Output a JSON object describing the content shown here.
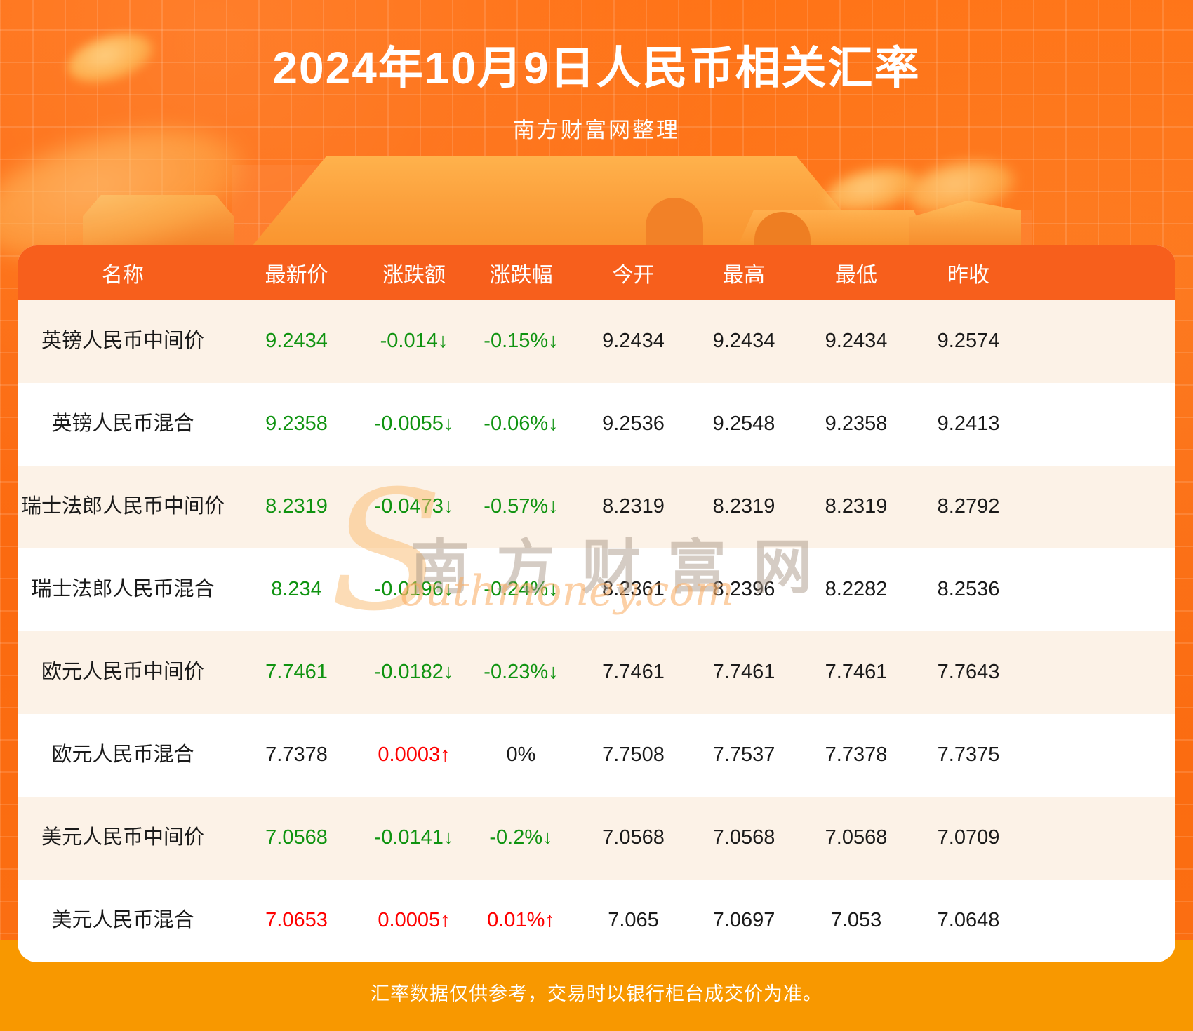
{
  "header": {
    "title": "2024年10月9日人民币相关汇率",
    "subtitle": "南方财富网整理"
  },
  "watermark": {
    "swoosh": "S",
    "cn": "南方财富网",
    "en": "outhmoney.com"
  },
  "footer": {
    "note": "汇率数据仅供参考，交易时以银行柜台成交价为准。"
  },
  "colors": {
    "page_orange": "#fb6a10",
    "header_orange": "#f75f1c",
    "footer_amber": "#f89800",
    "row_cream": "#fcf2e7",
    "row_white": "#ffffff",
    "down_green": "#0f9310",
    "up_red": "#fe0000",
    "text_black": "#1a1a1a"
  },
  "chart_data": {
    "type": "table",
    "title": "2024年10月9日人民币相关汇率",
    "subtitle": "南方财富网整理",
    "columns": [
      "名称",
      "最新价",
      "涨跌额",
      "涨跌幅",
      "今开",
      "最高",
      "最低",
      "昨收"
    ],
    "rows": [
      [
        "英镑人民币中间价",
        "9.2434",
        "-0.014↓",
        "-0.15%↓",
        "9.2434",
        "9.2434",
        "9.2434",
        "9.2574"
      ],
      [
        "英镑人民币混合",
        "9.2358",
        "-0.0055↓",
        "-0.06%↓",
        "9.2536",
        "9.2548",
        "9.2358",
        "9.2413"
      ],
      [
        "瑞士法郎人民币中间价",
        "8.2319",
        "-0.0473↓",
        "-0.57%↓",
        "8.2319",
        "8.2319",
        "8.2319",
        "8.2792"
      ],
      [
        "瑞士法郎人民币混合",
        "8.234",
        "-0.0196↓",
        "-0.24%↓",
        "8.2361",
        "8.2396",
        "8.2282",
        "8.2536"
      ],
      [
        "欧元人民币中间价",
        "7.7461",
        "-0.0182↓",
        "-0.23%↓",
        "7.7461",
        "7.7461",
        "7.7461",
        "7.7643"
      ],
      [
        "欧元人民币混合",
        "7.7378",
        "0.0003↑",
        "0%",
        "7.7508",
        "7.7537",
        "7.7378",
        "7.7375"
      ],
      [
        "美元人民币中间价",
        "7.0568",
        "-0.0141↓",
        "-0.2%↓",
        "7.0568",
        "7.0568",
        "7.0568",
        "7.0709"
      ],
      [
        "美元人民币混合",
        "7.0653",
        "0.0005↑",
        "0.01%↑",
        "7.065",
        "7.0697",
        "7.053",
        "7.0648"
      ]
    ],
    "cell_colors": [
      [
        "green",
        "green",
        "green",
        "black",
        "black",
        "black",
        "black"
      ],
      [
        "green",
        "green",
        "green",
        "black",
        "black",
        "black",
        "black"
      ],
      [
        "green",
        "green",
        "green",
        "black",
        "black",
        "black",
        "black"
      ],
      [
        "green",
        "green",
        "green",
        "black",
        "black",
        "black",
        "black"
      ],
      [
        "green",
        "green",
        "green",
        "black",
        "black",
        "black",
        "black"
      ],
      [
        "black",
        "red",
        "black",
        "black",
        "black",
        "black",
        "black"
      ],
      [
        "green",
        "green",
        "green",
        "black",
        "black",
        "black",
        "black"
      ],
      [
        "red",
        "red",
        "red",
        "black",
        "black",
        "black",
        "black"
      ]
    ]
  }
}
